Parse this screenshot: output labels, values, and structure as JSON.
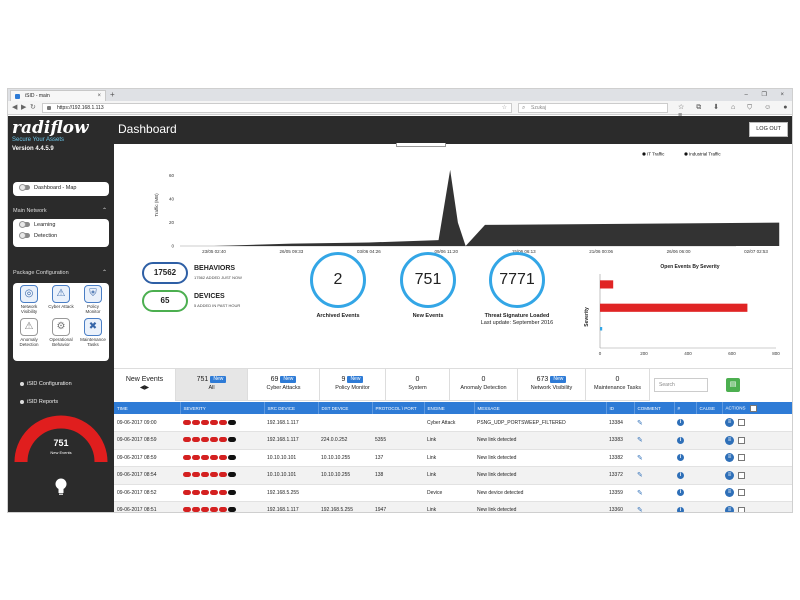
{
  "browser": {
    "tab_title": "iSID - main",
    "tab_close": "×",
    "new_tab": "+",
    "window_controls": "– ❐ ×",
    "url": "https://192.168.1.113",
    "search_placeholder": "Szukaj",
    "back_glyph": "◀",
    "forward_glyph": "▶",
    "reload_glyph": "↻",
    "toolbar_glyphs": "☆ ⧉ ⬇ ⌂ ⛉ ☺ ● ≡"
  },
  "sidebar": {
    "brand": "radiflow",
    "tagline": "Secure Your Assets",
    "version": "Version 4.4.5.9",
    "dashboard_map": "Dashboard - Map",
    "main_network": "Main Network",
    "learning": "Learning",
    "detection": "Detection",
    "package_configuration": "Package Configuration",
    "packages": [
      {
        "label": "Network Visibility",
        "icon": "network-visibility-icon",
        "glyph": "◎"
      },
      {
        "label": "Cyber Attack",
        "icon": "cyber-attack-icon",
        "glyph": "⚠"
      },
      {
        "label": "Policy Monitor",
        "icon": "policy-monitor-icon",
        "glyph": "⛨"
      },
      {
        "label": "Anomaly Detection",
        "icon": "anomaly-detection-icon",
        "glyph": "⚠"
      },
      {
        "label": "Operational Behavior",
        "icon": "operational-behavior-icon",
        "glyph": "⚙"
      },
      {
        "label": "Maintenance Tasks",
        "icon": "maintenance-tasks-icon",
        "glyph": "✖"
      }
    ],
    "isid_configuration": "iSID Configuration",
    "isid_reports": "iSID Reports",
    "gauge_value": "751",
    "gauge_label": "New Events"
  },
  "header": {
    "title": "Dashboard",
    "logout": "LOG OUT"
  },
  "traffic_chart": {
    "chart_data": {
      "type": "area",
      "ylabel": "Traffic (MB)",
      "legend": [
        "IT Traffic",
        "Industrial Traffic"
      ],
      "y_ticks": [
        "0",
        "20",
        "40",
        "60"
      ],
      "ylim": [
        0,
        70
      ],
      "x_ticks": [
        "23/05 02:40",
        "26/05 09:33",
        "03/06 04:26",
        "09/06 11:20",
        "15/06 06:13",
        "21/06 00:06",
        "26/06 06:00",
        "02/07 02:53"
      ],
      "series": [
        {
          "name": "Industrial Traffic",
          "points": [
            [
              0,
              0
            ],
            [
              1,
              2
            ],
            [
              2,
              3
            ],
            [
              2.9,
              5
            ],
            [
              3.05,
              65
            ],
            [
              3.15,
              20
            ],
            [
              3.25,
              0
            ],
            [
              3.5,
              18
            ],
            [
              7.3,
              20
            ],
            [
              7.3,
              0
            ]
          ]
        }
      ]
    }
  },
  "stats": {
    "behaviors_count": "17562",
    "behaviors_label": "BEHAVIORS",
    "behaviors_sub": "17562 ADDED JUST NOW",
    "devices_count": "65",
    "devices_label": "DEVICES",
    "devices_sub": "5 ADDED IN PAST HOUR",
    "archived_value": "2",
    "archived_label": "Archived Events",
    "new_value": "751",
    "new_label": "New Events",
    "threat_value": "7771",
    "threat_label": "Threat Signature Loaded",
    "threat_sub": "Last update: September 2016"
  },
  "severity_chart": {
    "chart_data": {
      "type": "bar",
      "title": "Open Events By Severity",
      "ylabel": "Severity",
      "orientation": "horizontal",
      "x_ticks": [
        "0",
        "200",
        "400",
        "600",
        "800"
      ],
      "xlim": [
        0,
        800
      ],
      "values": [
        60,
        670,
        10
      ],
      "colors": [
        "#e02424",
        "#e02424",
        "#33a6e6"
      ]
    }
  },
  "tabs": {
    "new_events_title": "New Events",
    "new_events_arrows": "◀▶",
    "new_badge": "New",
    "items": [
      {
        "count": "751",
        "label": "All",
        "badge": true
      },
      {
        "count": "69",
        "label": "Cyber Attacks",
        "badge": true
      },
      {
        "count": "9",
        "label": "Policy Monitor",
        "badge": true
      },
      {
        "count": "0",
        "label": "System",
        "badge": false
      },
      {
        "count": "0",
        "label": "Anomaly Detection",
        "badge": false
      },
      {
        "count": "673",
        "label": "Network Visibility",
        "badge": true
      },
      {
        "count": "0",
        "label": "Maintenance Tasks",
        "badge": false
      }
    ],
    "search_placeholder": "Search",
    "export_glyph": "▤"
  },
  "events_table": {
    "columns": [
      "TIME",
      "SEVERITY",
      "SRC DEVICE",
      "DST DEVICE",
      "PROTOCOL \\ PORT",
      "ENGINE",
      "MESSAGE",
      "ID",
      "COMMENT",
      "#",
      "CAUSE",
      "ACTIONS"
    ],
    "rows": [
      {
        "time": "09-06-2017 09:00",
        "severity": 5,
        "src": "192.168.1.117",
        "dst": "",
        "proto": "",
        "engine": "Cyber Attack",
        "message": "PSNG_UDP_PORTSWEEP_FILTERED",
        "id": "13384"
      },
      {
        "time": "09-06-2017 08:59",
        "severity": 5,
        "src": "192.168.1.117",
        "dst": "224.0.0.252",
        "proto": "5355",
        "engine": "Link",
        "message": "New link detected",
        "id": "13383"
      },
      {
        "time": "09-06-2017 08:59",
        "severity": 5,
        "src": "10.10.10.101",
        "dst": "10.10.10.255",
        "proto": "137",
        "engine": "Link",
        "message": "New link detected",
        "id": "13382"
      },
      {
        "time": "09-06-2017 08:54",
        "severity": 5,
        "src": "10.10.10.101",
        "dst": "10.10.10.255",
        "proto": "138",
        "engine": "Link",
        "message": "New link detected",
        "id": "13372"
      },
      {
        "time": "09-06-2017 08:52",
        "severity": 5,
        "src": "192.168.5.255",
        "dst": "",
        "proto": "",
        "engine": "Device",
        "message": "New device detected",
        "id": "13359"
      },
      {
        "time": "09-06-2017 08:51",
        "severity": 5,
        "src": "192.168.1.117",
        "dst": "192.168.5.255",
        "proto": "1947",
        "engine": "Link",
        "message": "New link detected",
        "id": "13360"
      }
    ]
  }
}
